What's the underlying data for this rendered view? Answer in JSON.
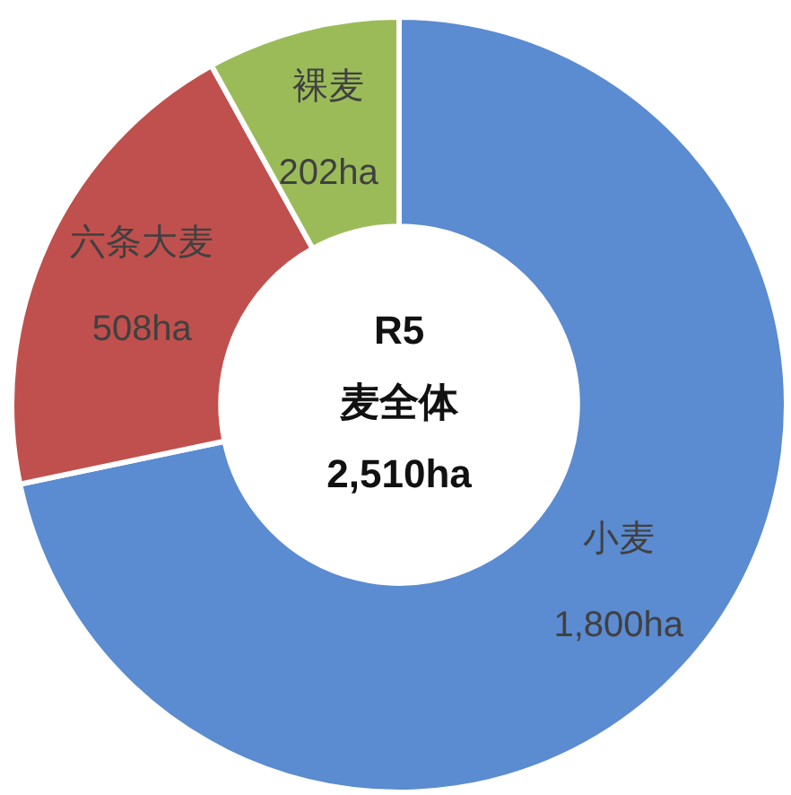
{
  "chart_data": {
    "type": "donut",
    "categories": [
      "小麦",
      "六条大麦",
      "裸麦"
    ],
    "values": [
      1800,
      508,
      202
    ],
    "colors": [
      "#5b8bd0",
      "#c0504d",
      "#9bbb59"
    ],
    "value_labels": [
      "1,800ha",
      "508ha",
      "202ha"
    ],
    "annotations": [
      "R5",
      "麦全体",
      "2,510ha"
    ],
    "legend": false
  }
}
